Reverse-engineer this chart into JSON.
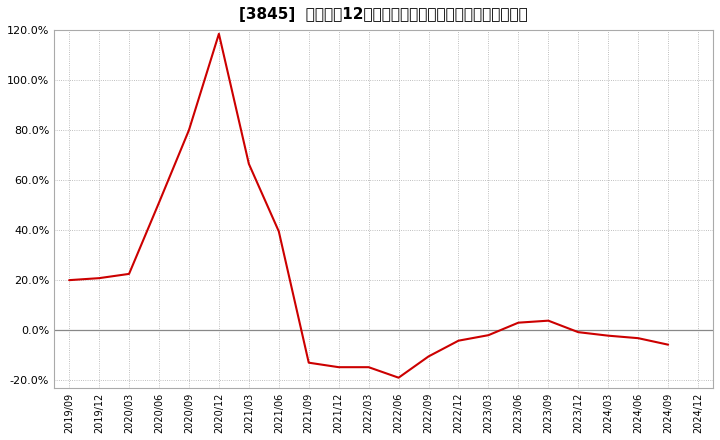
{
  "title": "[3845]  売上高の12か月移動合計の対前年同期増減率の推移",
  "line_color": "#cc0000",
  "line_width": 1.5,
  "bg_color": "#ffffff",
  "plot_bg_color": "#ffffff",
  "grid_color": "#aaaaaa",
  "zero_line_color": "#888888",
  "ylim": [
    -0.23,
    0.135
  ],
  "yticks": [
    -0.2,
    0.0,
    0.2,
    0.4,
    0.6,
    0.8,
    1.0,
    1.2
  ],
  "dates": [
    "2019/09",
    "2019/12",
    "2020/03",
    "2020/06",
    "2020/09",
    "2020/12",
    "2021/03",
    "2021/06",
    "2021/09",
    "2021/12",
    "2022/03",
    "2022/06",
    "2022/09",
    "2022/12",
    "2023/03",
    "2023/06",
    "2023/09",
    "2023/12",
    "2024/03",
    "2024/06",
    "2024/09",
    "2024/12"
  ],
  "values": [
    0.2,
    0.208,
    0.225,
    0.51,
    0.8,
    1.185,
    0.665,
    0.395,
    -0.13,
    -0.148,
    -0.148,
    -0.19,
    -0.105,
    -0.042,
    -0.02,
    0.03,
    0.038,
    -0.008,
    -0.022,
    -0.032,
    -0.058,
    null
  ],
  "xtick_labels": [
    "2019/09",
    "2019/12",
    "2020/03",
    "2020/06",
    "2020/09",
    "2020/12",
    "2021/03",
    "2021/06",
    "2021/09",
    "2021/12",
    "2022/03",
    "2022/06",
    "2022/09",
    "2022/12",
    "2023/03",
    "2023/06",
    "2023/09",
    "2023/12",
    "2024/03",
    "2024/06",
    "2024/09",
    "2024/12"
  ],
  "title_fontsize": 11,
  "tick_fontsize": 8,
  "xtick_fontsize": 7
}
